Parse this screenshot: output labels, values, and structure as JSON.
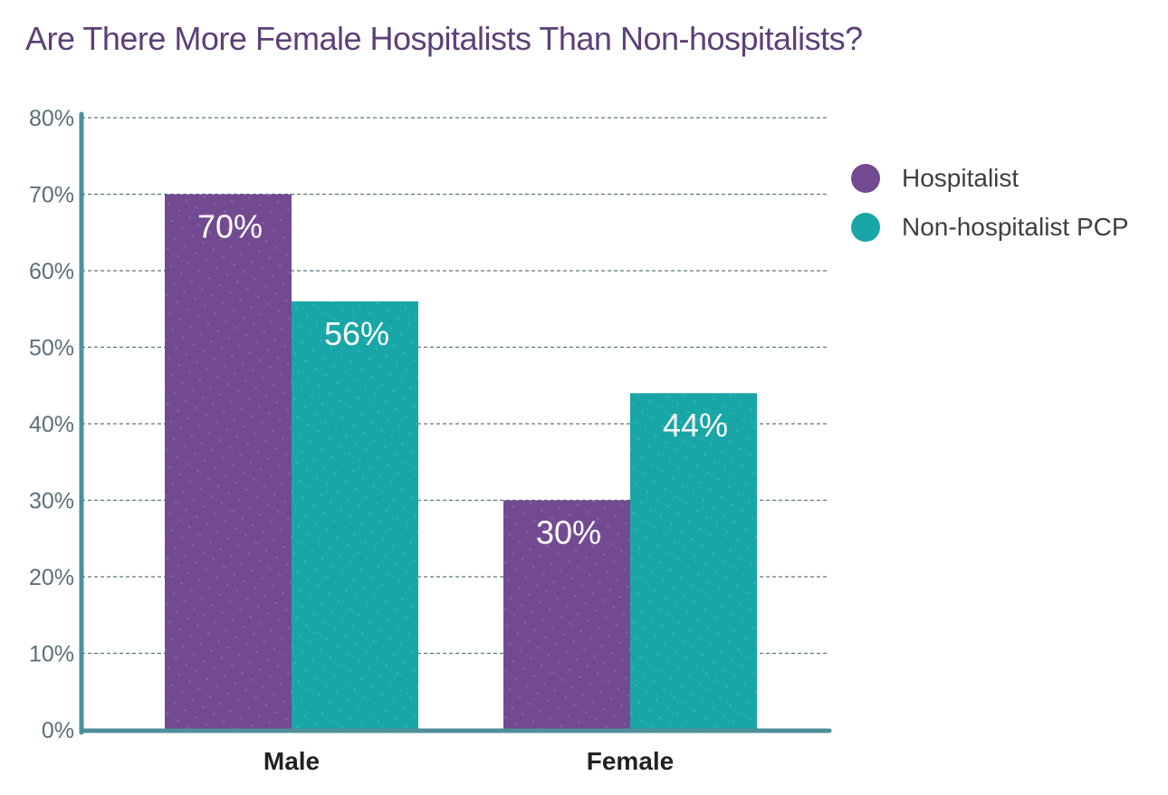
{
  "colors": {
    "title": "#5d3f78",
    "hospitalist": "#734a92",
    "non_hospitalist": "#19a6a6",
    "axis": "#4f8f99",
    "grid": "#5a7480"
  },
  "chart_data": {
    "type": "bar",
    "title": "Are There More Female Hospitalists Than Non-hospitalists?",
    "xlabel": "",
    "ylabel": "",
    "categories": [
      "Male",
      "Female"
    ],
    "series": [
      {
        "name": "Hospitalist",
        "values": [
          70,
          30
        ],
        "labels": [
          "70%",
          "30%"
        ],
        "color": "#734a92"
      },
      {
        "name": "Non-hospitalist PCP",
        "values": [
          56,
          44
        ],
        "labels": [
          "56%",
          "44%"
        ],
        "color": "#19a6a6"
      }
    ],
    "ylim": [
      0,
      80
    ],
    "yticks": [
      0,
      10,
      20,
      30,
      40,
      50,
      60,
      70,
      80
    ],
    "ytick_labels": [
      "0%",
      "10%",
      "20%",
      "30%",
      "40%",
      "50%",
      "60%",
      "70%",
      "80%"
    ],
    "grid": true,
    "legend_position": "top-right"
  }
}
